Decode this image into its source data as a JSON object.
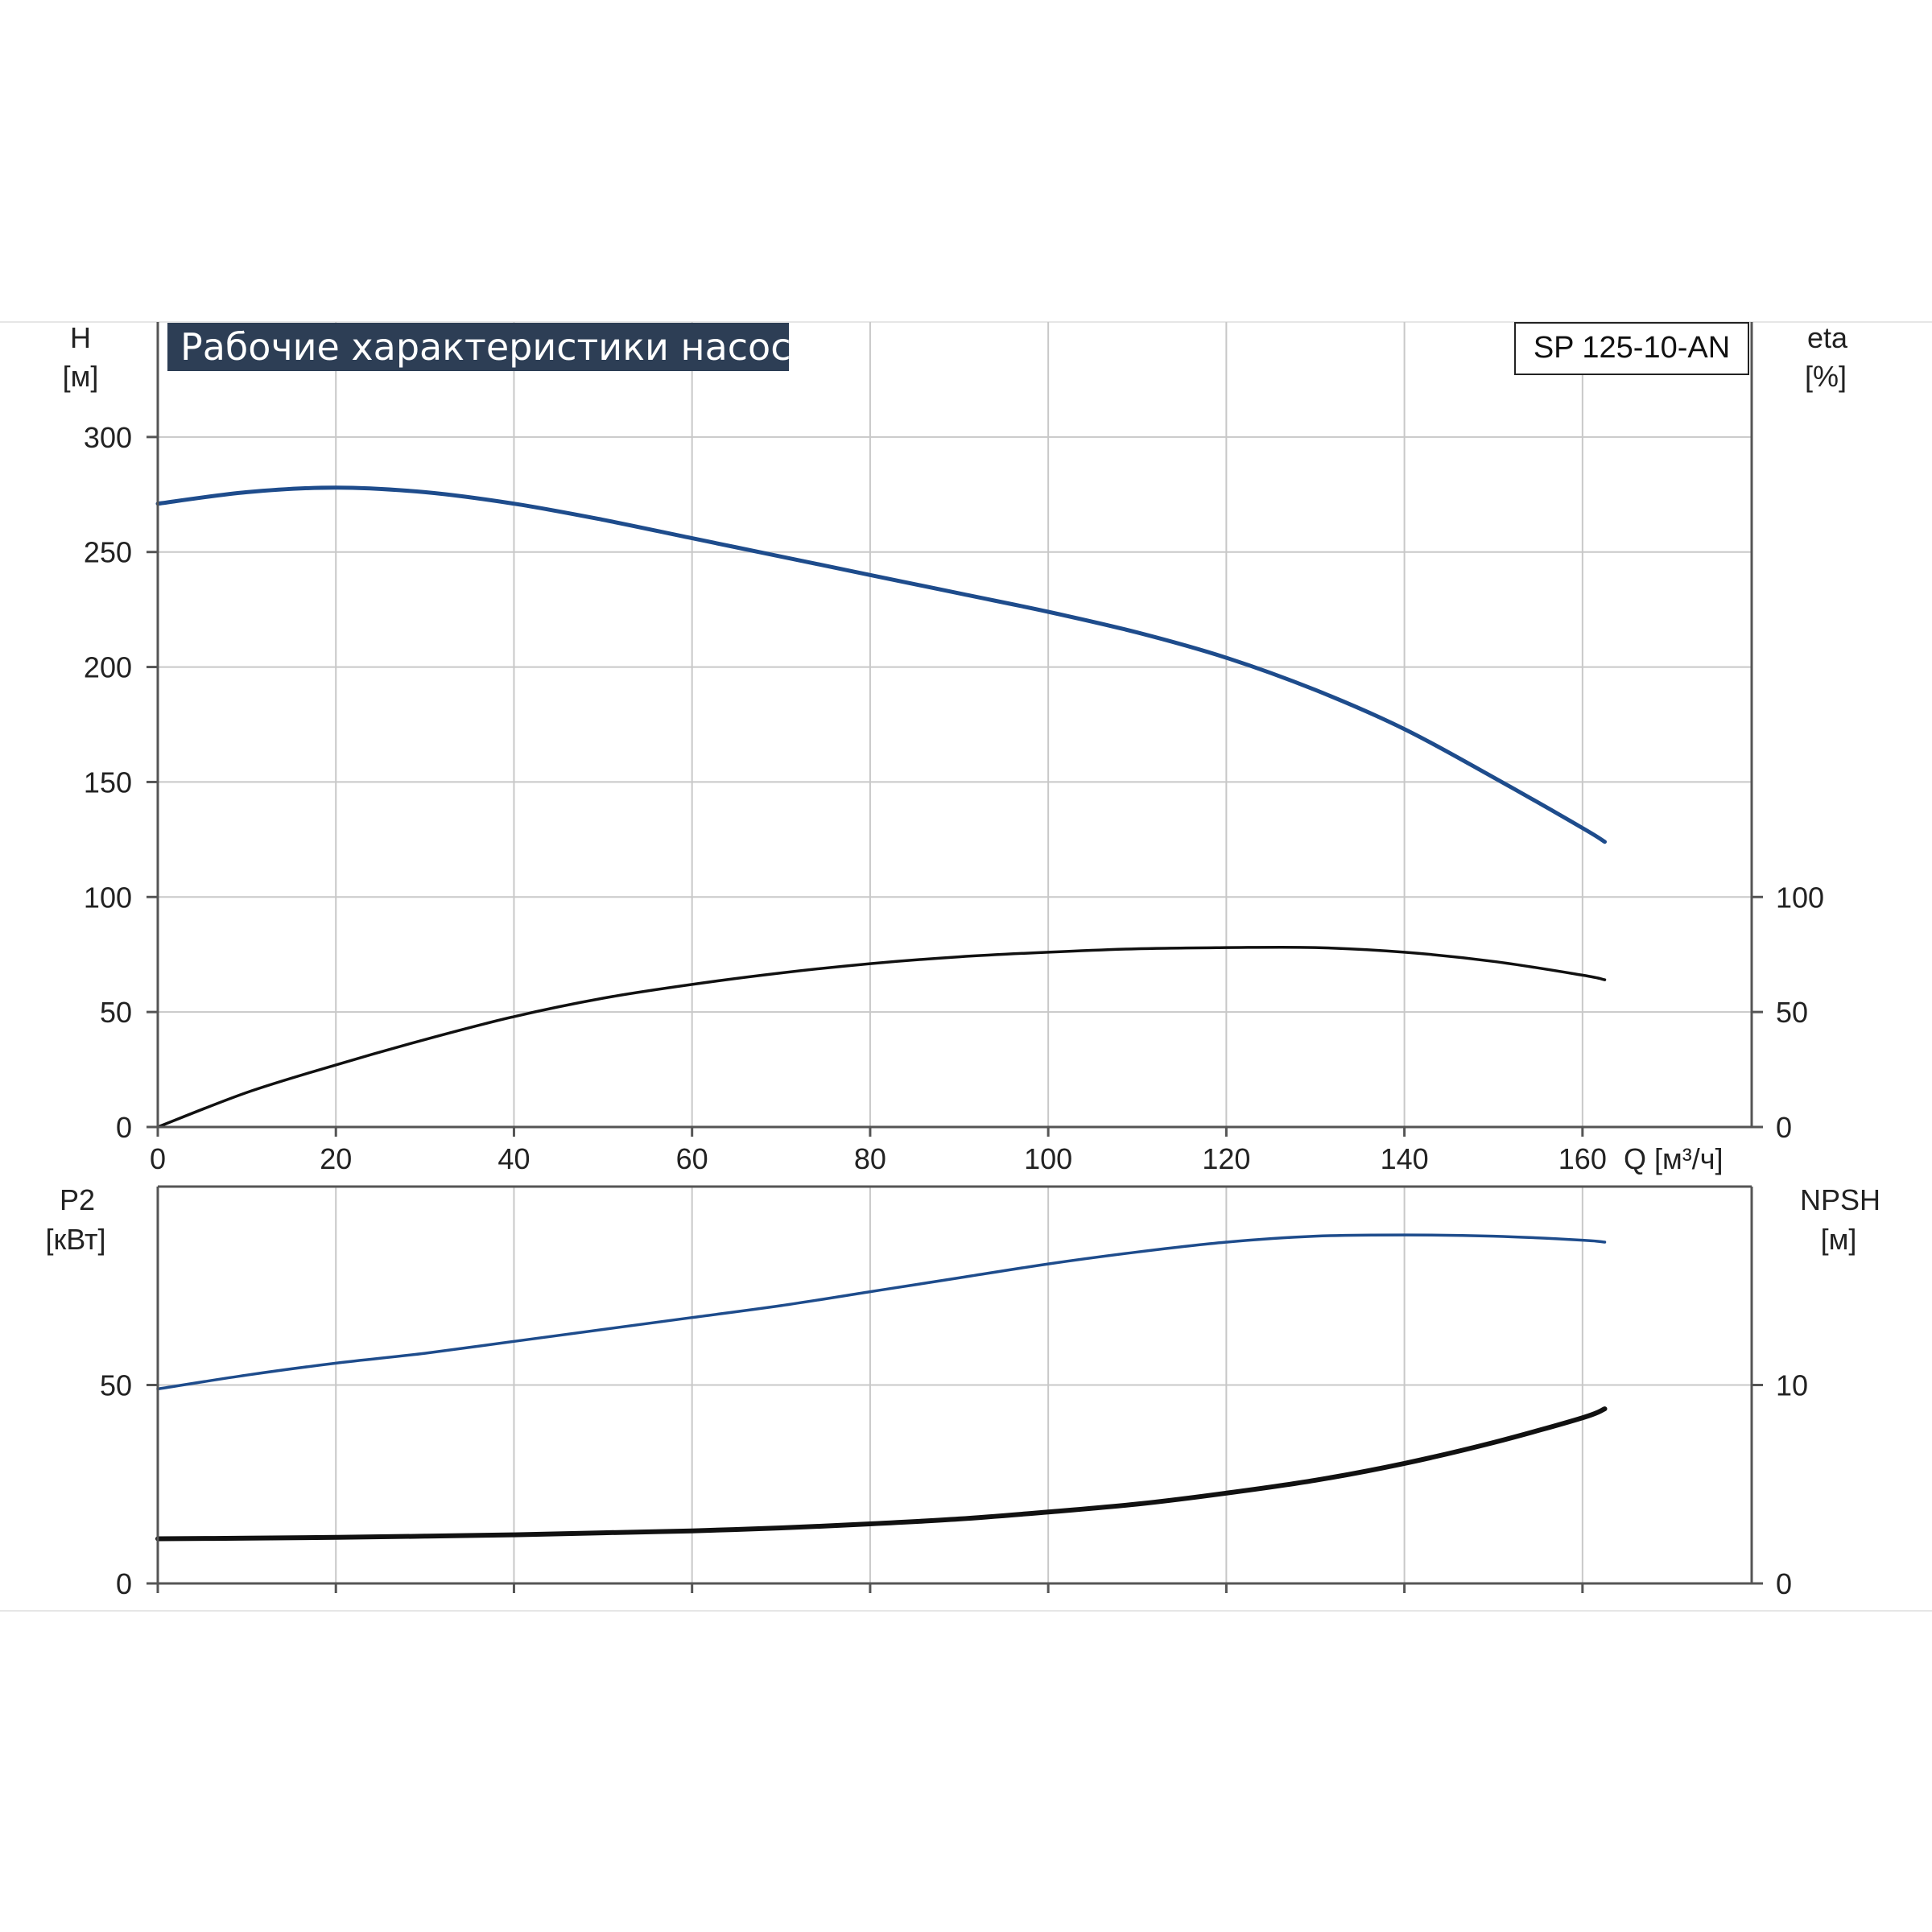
{
  "header": {
    "title": "Рабочие характеристики насоса",
    "model": "SP 125-10-AN"
  },
  "colors": {
    "title_bg": "#2d3e55",
    "blue_curve": "#1e4c8c",
    "black_curve": "#111111",
    "grid": "#c8c8c8",
    "axis": "#555555"
  },
  "chart_data": [
    {
      "type": "line",
      "panel": "top",
      "title": "Рабочие характеристики насоса",
      "xlabel": "Q [м³/ч]",
      "x_ticks": [
        "0",
        "20",
        "40",
        "60",
        "80",
        "100",
        "120",
        "140",
        "160"
      ],
      "xlim": [
        0,
        179
      ],
      "ylabel_left": {
        "name": "H",
        "unit": "[м]"
      },
      "ylabel_right": {
        "name": "eta",
        "unit": "[%]"
      },
      "ylim_left": [
        0,
        350
      ],
      "ylim_right": [
        0,
        350
      ],
      "y_ticks_left": [
        "0",
        "50",
        "100",
        "150",
        "200",
        "250",
        "300"
      ],
      "y_ticks_right": [
        "0",
        "50",
        "100"
      ],
      "grid": true,
      "series": [
        {
          "axis": "left",
          "color": "#1e4c8c",
          "x": [
            0,
            10,
            20,
            30,
            40,
            50,
            60,
            70,
            80,
            90,
            100,
            110,
            120,
            130,
            140,
            150,
            160,
            162.5
          ],
          "y": [
            271,
            276,
            278,
            276,
            271,
            264,
            256,
            248,
            240,
            232,
            224,
            215,
            204,
            190,
            173,
            152,
            130,
            124
          ]
        },
        {
          "axis": "right",
          "color": "#111111",
          "x": [
            0,
            10,
            20,
            30,
            40,
            50,
            60,
            70,
            80,
            90,
            100,
            110,
            120,
            130,
            140,
            150,
            160,
            162.5
          ],
          "y": [
            0,
            15,
            27,
            38,
            48,
            56,
            62,
            67,
            71,
            74,
            76,
            77.5,
            78,
            78,
            76,
            72,
            66,
            64
          ]
        }
      ]
    },
    {
      "type": "line",
      "panel": "bottom",
      "xlim": [
        0,
        179
      ],
      "ylabel_left": {
        "name": "P2",
        "unit": "[кВт]"
      },
      "ylabel_right": {
        "name": "NPSH",
        "unit": "[м]"
      },
      "ylim_left": [
        0,
        100
      ],
      "ylim_right": [
        0,
        20
      ],
      "y_ticks_left": [
        "0",
        "50"
      ],
      "y_ticks_right": [
        "0",
        "10"
      ],
      "grid": true,
      "series": [
        {
          "axis": "left",
          "color": "#1e4c8c",
          "x": [
            0,
            10,
            20,
            30,
            40,
            50,
            60,
            70,
            80,
            90,
            100,
            110,
            120,
            130,
            140,
            150,
            160,
            162.5
          ],
          "y": [
            49,
            52.5,
            55.5,
            58,
            61,
            64,
            67,
            70,
            73.5,
            77,
            80.5,
            83.5,
            86,
            87.5,
            87.8,
            87.5,
            86.5,
            86
          ]
        },
        {
          "axis": "right",
          "color": "#111111",
          "x": [
            0,
            10,
            20,
            30,
            40,
            50,
            60,
            70,
            80,
            90,
            100,
            110,
            120,
            130,
            140,
            150,
            160,
            162.5
          ],
          "y": [
            2.25,
            2.28,
            2.32,
            2.38,
            2.45,
            2.55,
            2.65,
            2.8,
            3.0,
            3.25,
            3.6,
            4.0,
            4.55,
            5.2,
            6.05,
            7.1,
            8.35,
            8.8
          ]
        }
      ]
    }
  ]
}
